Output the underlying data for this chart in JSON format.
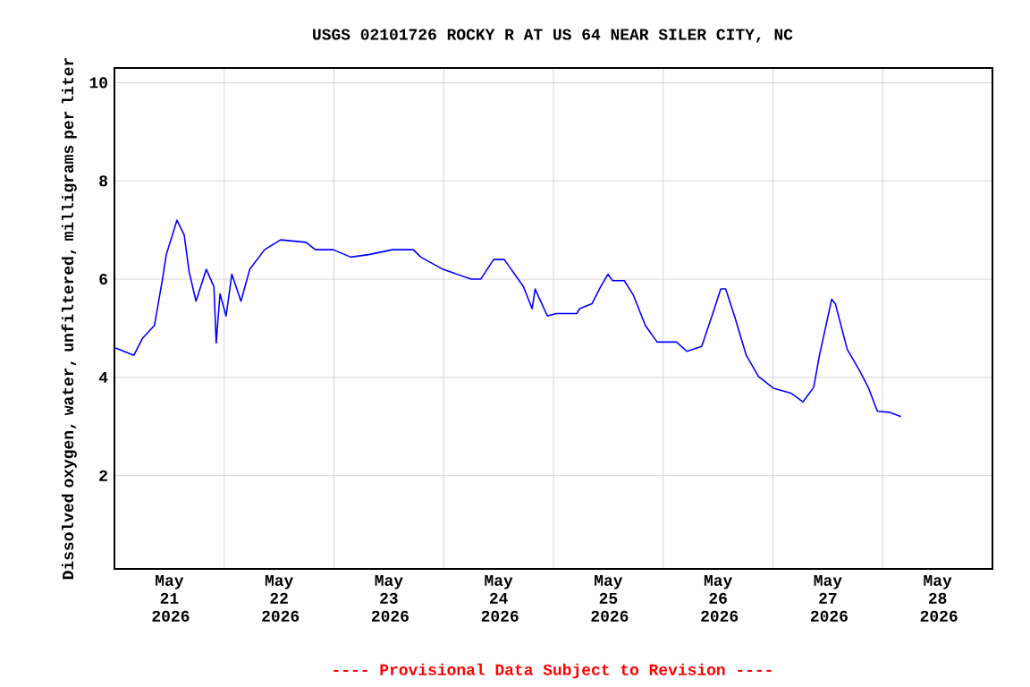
{
  "chart_data": {
    "type": "line",
    "title": "USGS 02101726 ROCKY R AT US 64 NEAR SILER CITY, NC",
    "ylabel": "Dissolved oxygen, water, unfiltered, milligrams per liter",
    "annotations": [
      "---- Provisional Data Subject to Revision ----"
    ],
    "xlim": [
      "2026-05-21",
      "2026-05-29"
    ],
    "ylim": [
      0.1,
      10.3
    ],
    "yticks": [
      2,
      4,
      6,
      8,
      10
    ],
    "xticks": [
      {
        "value": "2026-05-22",
        "label": null
      },
      {
        "value": "2026-05-23",
        "label": null
      },
      {
        "value": "2026-05-24",
        "label": null
      },
      {
        "value": "2026-05-25",
        "label": null
      },
      {
        "value": "2026-05-26",
        "label": null
      },
      {
        "value": "2026-05-27",
        "label": null
      },
      {
        "value": "2026-05-28",
        "label": null
      },
      {
        "value": "2026-05-21T12:00",
        "label": "May 21 2026"
      },
      {
        "value": "2026-05-22T12:00",
        "label": "May 22 2026"
      },
      {
        "value": "2026-05-23T12:00",
        "label": "May 23 2026"
      },
      {
        "value": "2026-05-24T12:00",
        "label": "May 24 2026"
      },
      {
        "value": "2026-05-25T12:00",
        "label": "May 25 2026"
      },
      {
        "value": "2026-05-26T12:00",
        "label": "May 26 2026"
      },
      {
        "value": "2026-05-27T12:00",
        "label": "May 27 2026"
      },
      {
        "value": "2026-05-28T12:00",
        "label": "May 28 2026"
      }
    ],
    "grid": true,
    "marker": "none",
    "line_style": "solid",
    "series": [
      {
        "color": "#0000ff",
        "x": [
          "2026-05-21T00:15",
          "2026-05-21T04:15",
          "2026-05-21T06:10",
          "2026-05-21T08:45",
          "2026-05-21T10:30",
          "2026-05-21T11:20",
          "2026-05-21T13:40",
          "2026-05-21T15:15",
          "2026-05-21T16:20",
          "2026-05-21T17:50",
          "2026-05-21T20:05",
          "2026-05-21T21:45",
          "2026-05-21T22:15",
          "2026-05-21T23:05",
          "2026-05-22T00:25",
          "2026-05-22T01:40",
          "2026-05-22T03:40",
          "2026-05-22T05:35",
          "2026-05-22T08:50",
          "2026-05-22T12:20",
          "2026-05-22T17:55",
          "2026-05-22T19:55",
          "2026-05-22T23:50",
          "2026-05-23T03:40",
          "2026-05-23T07:35",
          "2026-05-23T12:50",
          "2026-05-23T17:20",
          "2026-05-23T19:00",
          "2026-05-23T23:50",
          "2026-05-24T06:00",
          "2026-05-24T08:05",
          "2026-05-24T10:55",
          "2026-05-24T13:15",
          "2026-05-24T17:25",
          "2026-05-24T19:20",
          "2026-05-24T20:00",
          "2026-05-24T22:40",
          "2026-05-25T00:35",
          "2026-05-25T05:05",
          "2026-05-25T05:45",
          "2026-05-25T08:25",
          "2026-05-25T10:20",
          "2026-05-25T11:55",
          "2026-05-25T12:55",
          "2026-05-25T15:30",
          "2026-05-25T17:30",
          "2026-05-25T20:05",
          "2026-05-25T22:40",
          "2026-05-26T02:55",
          "2026-05-26T05:10",
          "2026-05-26T08:25",
          "2026-05-26T11:05",
          "2026-05-26T12:35",
          "2026-05-26T13:40",
          "2026-05-26T15:35",
          "2026-05-26T18:10",
          "2026-05-26T20:50",
          "2026-05-27T00:05",
          "2026-05-27T03:55",
          "2026-05-27T06:35",
          "2026-05-27T08:55",
          "2026-05-27T10:10",
          "2026-05-27T11:45",
          "2026-05-27T12:50",
          "2026-05-27T13:40",
          "2026-05-27T16:15",
          "2026-05-27T18:55",
          "2026-05-27T20:55",
          "2026-05-27T22:50",
          "2026-05-28T01:25",
          "2026-05-28T04:00"
        ],
        "values": [
          4.6,
          4.45,
          4.8,
          5.06,
          6.0,
          6.5,
          7.2,
          6.9,
          6.15,
          5.55,
          6.2,
          5.85,
          4.7,
          5.7,
          5.25,
          6.1,
          5.55,
          6.2,
          6.6,
          6.8,
          6.75,
          6.6,
          6.6,
          6.45,
          6.5,
          6.6,
          6.6,
          6.45,
          6.2,
          6.0,
          6.0,
          6.4,
          6.4,
          5.85,
          5.4,
          5.8,
          5.25,
          5.3,
          5.3,
          5.4,
          5.5,
          5.85,
          6.1,
          5.97,
          5.97,
          5.67,
          5.06,
          4.72,
          4.72,
          4.53,
          4.63,
          5.37,
          5.8,
          5.8,
          5.25,
          4.45,
          4.02,
          3.78,
          3.68,
          3.5,
          3.8,
          4.45,
          5.12,
          5.59,
          5.49,
          4.57,
          4.14,
          3.78,
          3.31,
          3.29,
          3.2
        ]
      }
    ]
  }
}
